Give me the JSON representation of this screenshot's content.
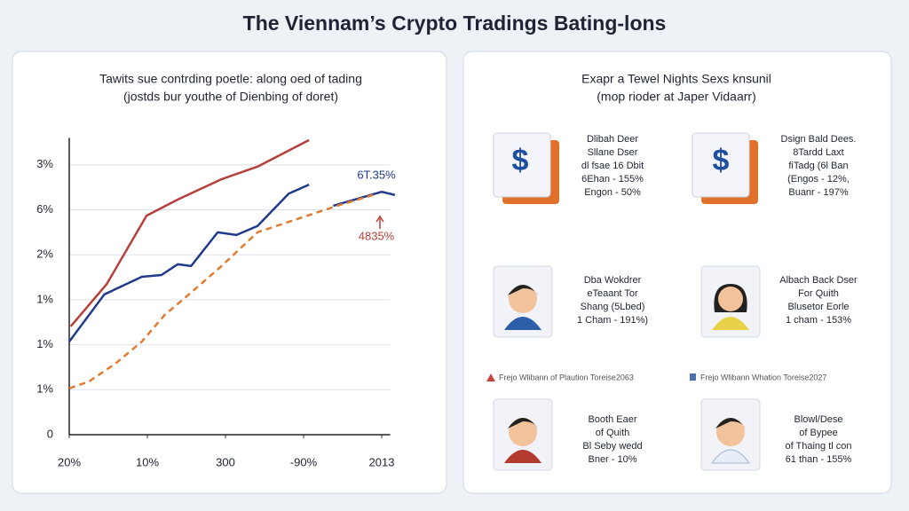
{
  "title": "The Viennam’s Crypto Tradings Bating-lons",
  "chart_data": {
    "type": "line",
    "subtitle": [
      "Tawits sue contrding poetle: along oed of tading",
      "(jostds bur youthe of Dienbing of doret)"
    ],
    "xlim": [
      0,
      4.2
    ],
    "ylim": [
      0,
      6.6
    ],
    "xticks": [
      {
        "value": 0,
        "label": "20%"
      },
      {
        "value": 1,
        "label": "10%"
      },
      {
        "value": 2,
        "label": "300"
      },
      {
        "value": 3,
        "label": "-90%"
      },
      {
        "value": 4,
        "label": "2013"
      }
    ],
    "yticks": [
      {
        "value": 0,
        "label": "0"
      },
      {
        "value": 1,
        "label": "1%"
      },
      {
        "value": 2,
        "label": "1%"
      },
      {
        "value": 3,
        "label": "1%"
      },
      {
        "value": 4,
        "label": "2%"
      },
      {
        "value": 5,
        "label": "6%"
      },
      {
        "value": 6,
        "label": "3%"
      }
    ],
    "grid": true,
    "series": [
      {
        "color": "#b5403a",
        "style": "solid",
        "x": [
          0.02,
          0.48,
          0.99,
          1.39,
          1.95,
          2.41,
          3.07
        ],
        "values": [
          2.41,
          3.35,
          4.87,
          5.23,
          5.68,
          5.96,
          6.55
        ]
      },
      {
        "color": "#1f3a8a",
        "style": "solid",
        "x": [
          0,
          0.45,
          0.93,
          1.18,
          1.39,
          1.56,
          1.9,
          2.14,
          2.41,
          2.81,
          3.07,
          3.2,
          3.38,
          3.66,
          4.0,
          4.17
        ],
        "values": [
          2.07,
          3.12,
          3.51,
          3.55,
          3.79,
          3.75,
          4.5,
          4.44,
          4.64,
          5.36,
          5.56,
          null,
          5.09,
          5.23,
          5.4,
          5.33
        ]
      },
      {
        "color": "#e07b30",
        "style": "dashed",
        "x": [
          0,
          0.25,
          0.59,
          0.93,
          1.22,
          1.56,
          1.95,
          2.41,
          2.98,
          3.43,
          3.89
        ],
        "values": [
          1.03,
          1.18,
          1.58,
          2.07,
          2.66,
          3.16,
          3.75,
          4.5,
          4.83,
          5.09,
          5.33
        ]
      }
    ],
    "annotations": [
      {
        "text": "6T.35%",
        "color": "#1f3a8a"
      },
      {
        "text": "4835%",
        "color": "#b5403a"
      }
    ]
  },
  "panel": {
    "title": [
      "Exapr a Tewel Nights Sexs knsunil",
      "(mop rioder at Japer Vidaarr)"
    ],
    "cards": [
      {
        "lines": [
          "Dlibah Deer",
          "Sllane Dser",
          "dl fsae 16 Dbit",
          "6Ehan - 155%",
          "Engon - 50%"
        ]
      },
      {
        "lines": [
          "Dsign Bald Dees.",
          "8Tardd Laxt",
          "fiTadg (6l Ban",
          "(Engos - 12%,",
          "Buanr - 197%"
        ]
      },
      {
        "lines": [
          "Dba Wokdrer",
          "eTeaant Tor",
          "Shang (5Lbed)",
          "1 Cham - 191%)"
        ]
      },
      {
        "lines": [
          "Albach Back Dser",
          "For Quith",
          "Blusetor Eorle",
          "1 cham - 153%"
        ]
      },
      {
        "lines": [
          "Booth Eaer",
          "of Quith",
          "Bl Seby wedd",
          "Bner - 10%"
        ]
      },
      {
        "lines": [
          "Blowl/Dese",
          "of Bypee",
          "of Thaing tl con",
          "61 than - 155%"
        ]
      }
    ],
    "legend": [
      "Frejo Wlibann of Plaution Toreise2063",
      "Frejo Wlibann Whation Toreise2027"
    ]
  }
}
